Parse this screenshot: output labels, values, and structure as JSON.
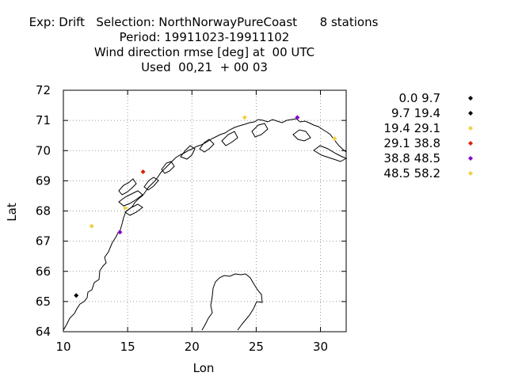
{
  "chart_data": {
    "type": "scatter",
    "title_lines": [
      "Exp: Drift   Selection: NorthNorwayPureCoast      8 stations",
      "Period: 19911023-19911102",
      "Wind direction rmse [deg] at  00 UTC",
      "Used  00,21  + 00 03"
    ],
    "xlabel": "Lon",
    "ylabel": "Lat",
    "xlim": [
      10,
      32
    ],
    "ylim": [
      64,
      72
    ],
    "xticks": [
      10,
      15,
      20,
      25,
      30
    ],
    "yticks": [
      64,
      65,
      66,
      67,
      68,
      69,
      70,
      71,
      72
    ],
    "grid": true,
    "legend_position": "right",
    "series": [
      {
        "name": "0.0 9.7",
        "color": "#000000",
        "points": [
          [
            11.0,
            65.2
          ]
        ]
      },
      {
        "name": "9.7 19.4",
        "color": "#000000",
        "points": []
      },
      {
        "name": "19.4 29.1",
        "color": "#f0d040",
        "points": [
          [
            12.2,
            67.5
          ],
          [
            14.8,
            68.1
          ],
          [
            24.1,
            71.1
          ],
          [
            31.1,
            70.4
          ]
        ]
      },
      {
        "name": "29.1 38.8",
        "color": "#dd2200",
        "points": [
          [
            16.2,
            69.3
          ]
        ]
      },
      {
        "name": "38.8 48.5",
        "color": "#8800cc",
        "points": [
          [
            14.4,
            67.3
          ],
          [
            28.2,
            71.1
          ]
        ]
      },
      {
        "name": "48.5 58.2",
        "color": "#f0d040",
        "points": []
      }
    ]
  }
}
